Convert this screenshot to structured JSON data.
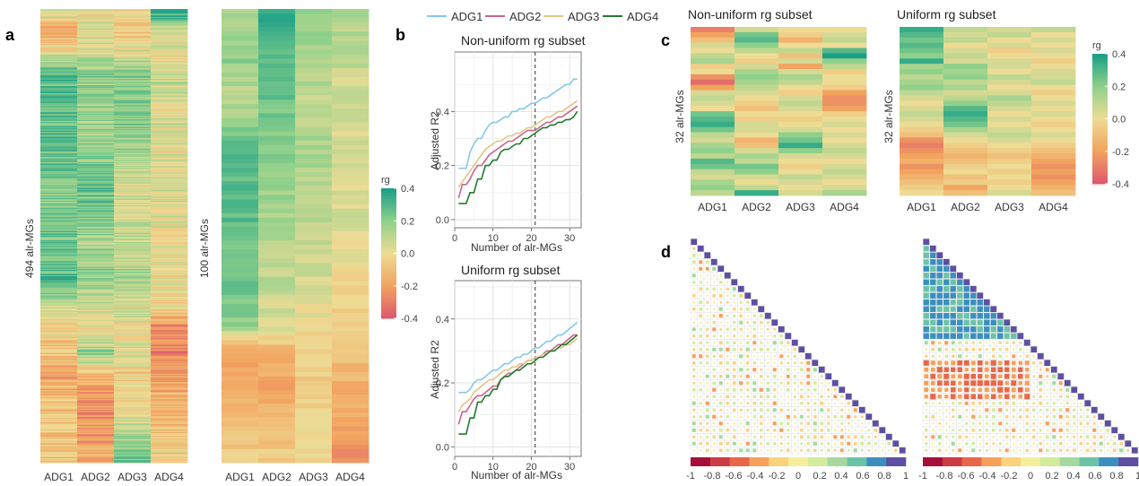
{
  "colors": {
    "low": "#de5a6e",
    "midlow": "#f2a45f",
    "mid": "#eedc95",
    "midhigh": "#8fd18b",
    "high": "#1a9f87",
    "ADG1": "#86c7e8",
    "ADG2": "#c9658c",
    "ADG3": "#e2c684",
    "ADG4": "#237a2d",
    "diag": "#6a52a3"
  },
  "panel_labels": {
    "a": "a",
    "b": "b",
    "c": "c",
    "d": "d"
  },
  "chart_data": [
    {
      "id": "heatmap-a1",
      "type": "heatmap",
      "ylabel": "494 alr-MGs",
      "columns": [
        "ADG1",
        "ADG2",
        "ADG3",
        "ADG4"
      ],
      "n_rows": 494,
      "profile_stops": [
        [
          0.0,
          0.1,
          0.0,
          0.0,
          0.45
        ],
        [
          0.05,
          -0.2,
          0.05,
          -0.1,
          0.05
        ],
        [
          0.1,
          0.05,
          0.1,
          0.05,
          0.0
        ],
        [
          0.15,
          0.3,
          0.2,
          0.2,
          0.1
        ],
        [
          0.28,
          0.28,
          0.15,
          0.18,
          0.0
        ],
        [
          0.4,
          0.2,
          0.28,
          0.05,
          0.05
        ],
        [
          0.52,
          0.25,
          0.15,
          0.1,
          0.0
        ],
        [
          0.6,
          0.3,
          0.18,
          0.15,
          0.0
        ],
        [
          0.66,
          0.1,
          0.05,
          0.05,
          -0.05
        ],
        [
          0.7,
          -0.05,
          0.0,
          0.0,
          -0.25
        ],
        [
          0.76,
          -0.1,
          0.2,
          0.05,
          -0.3
        ],
        [
          0.8,
          -0.2,
          -0.1,
          -0.05,
          -0.2
        ],
        [
          0.86,
          -0.1,
          -0.25,
          -0.05,
          -0.15
        ],
        [
          0.92,
          -0.05,
          -0.25,
          0.1,
          -0.1
        ],
        [
          1.0,
          -0.1,
          -0.15,
          0.25,
          -0.05
        ]
      ]
    },
    {
      "id": "heatmap-a2",
      "type": "heatmap",
      "ylabel": "100 alr-MGs",
      "columns": [
        "ADG1",
        "ADG2",
        "ADG3",
        "ADG4"
      ],
      "n_rows": 100,
      "colorbar": {
        "title": "rg",
        "ticks": [
          0.4,
          0.2,
          0.0,
          -0.2,
          -0.4
        ]
      },
      "profile_stops": [
        [
          0.0,
          0.15,
          0.35,
          0.2,
          0.15
        ],
        [
          0.1,
          0.2,
          0.3,
          0.15,
          0.1
        ],
        [
          0.2,
          0.1,
          0.25,
          0.1,
          0.05
        ],
        [
          0.3,
          0.3,
          0.2,
          0.15,
          0.05
        ],
        [
          0.45,
          0.28,
          0.15,
          0.12,
          0.05
        ],
        [
          0.6,
          0.25,
          0.1,
          0.05,
          0.0
        ],
        [
          0.7,
          0.2,
          0.05,
          0.0,
          -0.05
        ],
        [
          0.76,
          -0.2,
          -0.15,
          -0.05,
          -0.1
        ],
        [
          0.85,
          -0.15,
          -0.2,
          -0.05,
          -0.15
        ],
        [
          0.92,
          -0.1,
          -0.1,
          0.0,
          -0.2
        ],
        [
          1.0,
          -0.05,
          -0.05,
          0.0,
          -0.25
        ]
      ]
    },
    {
      "id": "line-b1",
      "type": "line",
      "title": "Non-uniform rg subset",
      "xlabel": "Number of alr-MGs",
      "ylabel": "Adjusted R2",
      "xlim": [
        0,
        33
      ],
      "ylim": [
        -0.03,
        0.62
      ],
      "xticks": [
        0,
        10,
        20,
        30
      ],
      "yticks": [
        0.0,
        0.2,
        0.4
      ],
      "xtick_labels": [
        "0",
        "10",
        "20",
        "30"
      ],
      "ytick_labels": [
        "0.0",
        "0.2",
        "0.4"
      ],
      "vline": 21,
      "x": [
        1,
        2,
        3,
        4,
        5,
        6,
        7,
        8,
        9,
        10,
        11,
        12,
        13,
        14,
        15,
        16,
        17,
        18,
        19,
        20,
        21,
        22,
        23,
        24,
        25,
        26,
        27,
        28,
        29,
        30,
        31,
        32
      ],
      "series": [
        {
          "name": "ADG1",
          "values": [
            0.19,
            0.19,
            0.19,
            0.25,
            0.28,
            0.3,
            0.3,
            0.33,
            0.35,
            0.36,
            0.36,
            0.37,
            0.38,
            0.38,
            0.4,
            0.4,
            0.41,
            0.41,
            0.42,
            0.43,
            0.43,
            0.44,
            0.45,
            0.45,
            0.46,
            0.47,
            0.48,
            0.49,
            0.5,
            0.5,
            0.52,
            0.52
          ]
        },
        {
          "name": "ADG2",
          "values": [
            0.08,
            0.13,
            0.13,
            0.15,
            0.18,
            0.2,
            0.2,
            0.22,
            0.24,
            0.25,
            0.26,
            0.27,
            0.28,
            0.29,
            0.29,
            0.3,
            0.31,
            0.32,
            0.33,
            0.33,
            0.33,
            0.34,
            0.35,
            0.36,
            0.36,
            0.37,
            0.38,
            0.38,
            0.39,
            0.4,
            0.41,
            0.42
          ]
        },
        {
          "name": "ADG3",
          "values": [
            0.12,
            0.14,
            0.16,
            0.18,
            0.2,
            0.22,
            0.24,
            0.26,
            0.27,
            0.28,
            0.29,
            0.29,
            0.3,
            0.31,
            0.31,
            0.32,
            0.32,
            0.33,
            0.34,
            0.34,
            0.35,
            0.36,
            0.37,
            0.38,
            0.38,
            0.39,
            0.4,
            0.4,
            0.41,
            0.42,
            0.43,
            0.44
          ]
        },
        {
          "name": "ADG4",
          "values": [
            0.06,
            0.06,
            0.06,
            0.1,
            0.1,
            0.15,
            0.15,
            0.2,
            0.2,
            0.22,
            0.22,
            0.25,
            0.26,
            0.26,
            0.27,
            0.28,
            0.28,
            0.3,
            0.3,
            0.31,
            0.32,
            0.33,
            0.34,
            0.34,
            0.35,
            0.35,
            0.36,
            0.36,
            0.37,
            0.37,
            0.38,
            0.4
          ]
        }
      ]
    },
    {
      "id": "line-b2",
      "type": "line",
      "title": "Uniform rg subset",
      "xlabel": "Number of alr-MGs",
      "ylabel": "Adjusted R2",
      "xlim": [
        0,
        33
      ],
      "ylim": [
        -0.03,
        0.52
      ],
      "xticks": [
        0,
        10,
        20,
        30
      ],
      "yticks": [
        0.0,
        0.2,
        0.4
      ],
      "xtick_labels": [
        "0",
        "10",
        "20",
        "30"
      ],
      "ytick_labels": [
        "0.0",
        "0.2",
        "0.4"
      ],
      "vline": 21,
      "x": [
        1,
        2,
        3,
        4,
        5,
        6,
        7,
        8,
        9,
        10,
        11,
        12,
        13,
        14,
        15,
        16,
        17,
        18,
        19,
        20,
        21,
        22,
        23,
        24,
        25,
        26,
        27,
        28,
        29,
        30,
        31,
        32
      ],
      "series": [
        {
          "name": "ADG1",
          "values": [
            0.17,
            0.17,
            0.17,
            0.18,
            0.2,
            0.21,
            0.21,
            0.22,
            0.23,
            0.24,
            0.24,
            0.25,
            0.26,
            0.26,
            0.27,
            0.28,
            0.28,
            0.29,
            0.29,
            0.3,
            0.31,
            0.31,
            0.32,
            0.33,
            0.33,
            0.34,
            0.35,
            0.35,
            0.36,
            0.37,
            0.38,
            0.39
          ]
        },
        {
          "name": "ADG2",
          "values": [
            0.07,
            0.11,
            0.11,
            0.13,
            0.15,
            0.16,
            0.16,
            0.17,
            0.18,
            0.19,
            0.19,
            0.21,
            0.22,
            0.23,
            0.23,
            0.24,
            0.25,
            0.26,
            0.27,
            0.27,
            0.28,
            0.28,
            0.29,
            0.3,
            0.3,
            0.31,
            0.32,
            0.32,
            0.33,
            0.34,
            0.35,
            0.35
          ]
        },
        {
          "name": "ADG3",
          "values": [
            0.11,
            0.13,
            0.14,
            0.15,
            0.17,
            0.18,
            0.19,
            0.2,
            0.21,
            0.21,
            0.22,
            0.23,
            0.24,
            0.24,
            0.25,
            0.25,
            0.26,
            0.26,
            0.27,
            0.27,
            0.28,
            0.28,
            0.29,
            0.29,
            0.3,
            0.3,
            0.31,
            0.31,
            0.32,
            0.32,
            0.33,
            0.34
          ]
        },
        {
          "name": "ADG4",
          "values": [
            0.04,
            0.04,
            0.04,
            0.09,
            0.09,
            0.14,
            0.14,
            0.16,
            0.16,
            0.18,
            0.18,
            0.21,
            0.22,
            0.22,
            0.23,
            0.24,
            0.24,
            0.25,
            0.26,
            0.26,
            0.27,
            0.28,
            0.28,
            0.29,
            0.3,
            0.3,
            0.31,
            0.32,
            0.32,
            0.33,
            0.34,
            0.35
          ]
        }
      ]
    },
    {
      "id": "heatmap-c1",
      "type": "heatmap",
      "title": "Non-uniform rg subset",
      "ylabel": "32 alr-MGs",
      "columns": [
        "ADG1",
        "ADG2",
        "ADG3",
        "ADG4"
      ],
      "n_rows": 32,
      "values": [
        [
          -0.3,
          0.05,
          0.0,
          0.0
        ],
        [
          -0.2,
          0.25,
          -0.05,
          0.05
        ],
        [
          -0.1,
          0.3,
          -0.15,
          0.1
        ],
        [
          0.05,
          0.2,
          0.0,
          0.0
        ],
        [
          0.0,
          0.1,
          0.1,
          0.3
        ],
        [
          0.1,
          0.0,
          -0.1,
          0.4
        ],
        [
          0.15,
          -0.05,
          0.05,
          0.2
        ],
        [
          -0.05,
          0.05,
          -0.2,
          0.1
        ],
        [
          0.0,
          0.15,
          0.05,
          -0.05
        ],
        [
          -0.25,
          0.2,
          0.15,
          0.0
        ],
        [
          -0.35,
          0.15,
          0.1,
          0.0
        ],
        [
          -0.2,
          0.1,
          0.0,
          -0.05
        ],
        [
          0.05,
          0.05,
          -0.05,
          -0.2
        ],
        [
          0.1,
          0.0,
          0.05,
          -0.25
        ],
        [
          0.05,
          -0.05,
          0.1,
          -0.25
        ],
        [
          0.0,
          -0.1,
          0.05,
          -0.2
        ],
        [
          0.25,
          0.0,
          0.0,
          -0.05
        ],
        [
          0.3,
          -0.05,
          -0.05,
          0.0
        ],
        [
          0.35,
          0.05,
          0.0,
          0.05
        ],
        [
          0.25,
          0.05,
          0.05,
          0.0
        ],
        [
          0.1,
          0.0,
          0.2,
          0.05
        ],
        [
          0.05,
          -0.15,
          0.25,
          0.0
        ],
        [
          0.15,
          -0.1,
          0.35,
          0.05
        ],
        [
          0.2,
          0.05,
          0.2,
          0.1
        ],
        [
          0.1,
          0.15,
          0.05,
          0.05
        ],
        [
          0.3,
          0.1,
          0.0,
          0.0
        ],
        [
          0.25,
          0.25,
          -0.05,
          0.05
        ],
        [
          0.1,
          0.2,
          0.0,
          0.1
        ],
        [
          0.05,
          0.05,
          0.1,
          0.05
        ],
        [
          0.15,
          0.0,
          0.05,
          0.0
        ],
        [
          0.2,
          0.1,
          0.0,
          0.05
        ],
        [
          0.1,
          0.35,
          0.05,
          0.15
        ]
      ]
    },
    {
      "id": "heatmap-c2",
      "type": "heatmap",
      "title": "Uniform rg subset",
      "ylabel": "32 alr-MGs",
      "columns": [
        "ADG1",
        "ADG2",
        "ADG3",
        "ADG4"
      ],
      "n_rows": 32,
      "colorbar": {
        "title": "rg",
        "ticks": [
          0.4,
          0.2,
          0.0,
          -0.2,
          -0.4
        ]
      },
      "values": [
        [
          0.35,
          0.1,
          0.05,
          0.1
        ],
        [
          0.3,
          0.05,
          0.1,
          0.0
        ],
        [
          0.25,
          0.1,
          0.0,
          0.05
        ],
        [
          0.3,
          0.0,
          0.05,
          0.0
        ],
        [
          0.25,
          0.05,
          -0.05,
          0.05
        ],
        [
          0.2,
          0.1,
          0.0,
          0.0
        ],
        [
          0.35,
          0.05,
          0.05,
          -0.05
        ],
        [
          0.15,
          0.2,
          0.05,
          0.0
        ],
        [
          0.2,
          0.15,
          0.0,
          0.05
        ],
        [
          0.1,
          0.2,
          0.1,
          0.05
        ],
        [
          0.15,
          0.1,
          0.05,
          0.1
        ],
        [
          0.2,
          0.15,
          0.0,
          0.0
        ],
        [
          0.1,
          0.05,
          0.05,
          -0.05
        ],
        [
          0.05,
          0.1,
          0.15,
          0.0
        ],
        [
          0.0,
          0.2,
          0.1,
          0.05
        ],
        [
          0.05,
          0.3,
          0.05,
          0.0
        ],
        [
          0.1,
          0.35,
          0.0,
          0.05
        ],
        [
          0.05,
          0.3,
          0.05,
          0.0
        ],
        [
          0.0,
          0.25,
          0.0,
          -0.05
        ],
        [
          -0.05,
          0.15,
          0.05,
          0.0
        ],
        [
          -0.1,
          0.05,
          0.1,
          0.05
        ],
        [
          -0.25,
          0.0,
          0.05,
          0.0
        ],
        [
          -0.3,
          -0.05,
          0.0,
          -0.05
        ],
        [
          -0.25,
          -0.1,
          -0.05,
          -0.1
        ],
        [
          -0.2,
          -0.15,
          -0.1,
          -0.15
        ],
        [
          -0.15,
          -0.1,
          -0.05,
          -0.2
        ],
        [
          -0.25,
          -0.05,
          0.0,
          -0.25
        ],
        [
          -0.2,
          0.0,
          -0.05,
          -0.2
        ],
        [
          -0.15,
          -0.1,
          0.0,
          -0.25
        ],
        [
          -0.1,
          -0.05,
          -0.05,
          -0.2
        ],
        [
          -0.05,
          -0.2,
          0.0,
          -0.15
        ],
        [
          0.0,
          -0.1,
          0.05,
          -0.1
        ]
      ]
    },
    {
      "id": "corr-d1",
      "type": "heatmap",
      "size": 32,
      "seed": 7,
      "block": null
    },
    {
      "id": "corr-d2",
      "type": "heatmap",
      "size": 32,
      "seed": 19,
      "block": [
        0,
        14
      ],
      "neg_rows": [
        18,
        23
      ]
    },
    {
      "id": "colorbar-d",
      "type": "heatmap",
      "ticks": [
        "-1",
        "-0.8",
        "-0.6",
        "-0.4",
        "-0.2",
        "0",
        "0.2",
        "0.4",
        "0.6",
        "0.8",
        "1"
      ],
      "colors": [
        "#a50f3a",
        "#cc3a45",
        "#e8674a",
        "#f6a05a",
        "#fbd27e",
        "#f5ee9a",
        "#d2eb9c",
        "#a6d9a0",
        "#6cc3a7",
        "#3b8fbe",
        "#5e4fa2"
      ]
    }
  ]
}
